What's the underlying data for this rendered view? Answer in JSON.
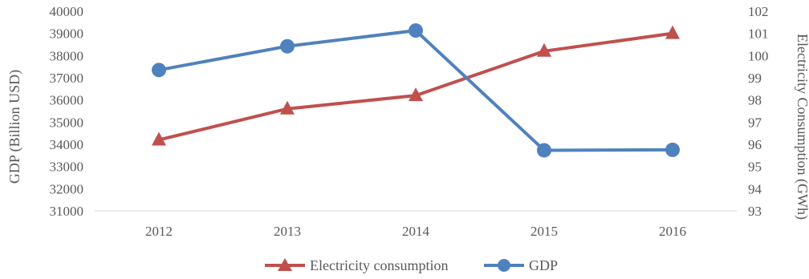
{
  "chart_data": {
    "type": "line",
    "categories": [
      "2012",
      "2013",
      "2014",
      "2015",
      "2016"
    ],
    "series": [
      {
        "name": "Electricity consumption",
        "axis": "right",
        "color": "#C0504D",
        "marker": "triangle",
        "values": [
          96.2,
          97.6,
          98.2,
          100.2,
          101.0
        ]
      },
      {
        "name": "GDP",
        "axis": "left",
        "color": "#4F81BD",
        "marker": "circle",
        "values": [
          37350,
          38420,
          39130,
          33730,
          33750
        ]
      }
    ],
    "ylabel": "GDP (Billion USD)",
    "y2label": "Electricity Consumption (GWh)",
    "ylim": [
      31000,
      40000
    ],
    "y2lim": [
      93,
      102
    ],
    "yticks": [
      "31000",
      "32000",
      "33000",
      "34000",
      "35000",
      "36000",
      "37000",
      "38000",
      "39000",
      "40000"
    ],
    "y2ticks": [
      "93",
      "94",
      "95",
      "96",
      "97",
      "98",
      "99",
      "100",
      "101",
      "102"
    ],
    "grid": false,
    "legend_position": "bottom"
  }
}
